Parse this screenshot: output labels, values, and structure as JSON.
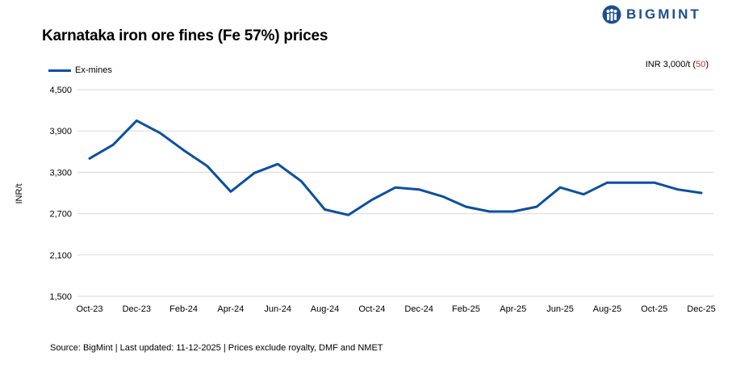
{
  "logo": {
    "text": "BIGMINT",
    "icon": "people-icon",
    "color": "#1b4f91"
  },
  "price_note": {
    "prefix": "INR 3,000/t (",
    "change": "50",
    "suffix": ")",
    "change_color": "#d0312d"
  },
  "source": "Source: BigMint | Last updated: 11-12-2025 | Prices exclude royalty, DMF and NMET",
  "chart_data": {
    "type": "line",
    "title": "Karnataka iron ore fines (Fe 57%) prices",
    "ylabel": "INR/t",
    "xlabel": "",
    "ylim": [
      1500,
      4500
    ],
    "yticks": [
      1500,
      2100,
      2700,
      3300,
      3900,
      4500
    ],
    "ytick_labels": [
      "1,500",
      "2,100",
      "2,700",
      "3,300",
      "3,900",
      "4,500"
    ],
    "x": [
      "Oct-23",
      "Nov-23",
      "Dec-23",
      "Jan-24",
      "Feb-24",
      "Mar-24",
      "Apr-24",
      "May-24",
      "Jun-24",
      "Jul-24",
      "Aug-24",
      "Sep-24",
      "Oct-24",
      "Nov-24",
      "Dec-24",
      "Jan-25",
      "Feb-25",
      "Mar-25",
      "Apr-25",
      "May-25",
      "Jun-25",
      "Jul-25",
      "Aug-25",
      "Sep-25",
      "Oct-25",
      "Nov-25",
      "Dec-25"
    ],
    "xtick_labels": [
      "Oct-23",
      "Dec-23",
      "Feb-24",
      "Apr-24",
      "Jun-24",
      "Aug-24",
      "Oct-24",
      "Dec-24",
      "Feb-25",
      "Apr-25",
      "Jun-25",
      "Aug-25",
      "Oct-25",
      "Dec-25"
    ],
    "series": [
      {
        "name": "Ex-mines",
        "color": "#0b4fa3",
        "values": [
          3500,
          3700,
          4050,
          3870,
          3620,
          3390,
          3020,
          3290,
          3420,
          3170,
          2760,
          2680,
          2900,
          3080,
          3050,
          2950,
          2800,
          2730,
          2730,
          2800,
          3080,
          2980,
          3150,
          3150,
          3150,
          3050,
          3000
        ]
      }
    ],
    "grid": true,
    "legend": "top-left"
  }
}
